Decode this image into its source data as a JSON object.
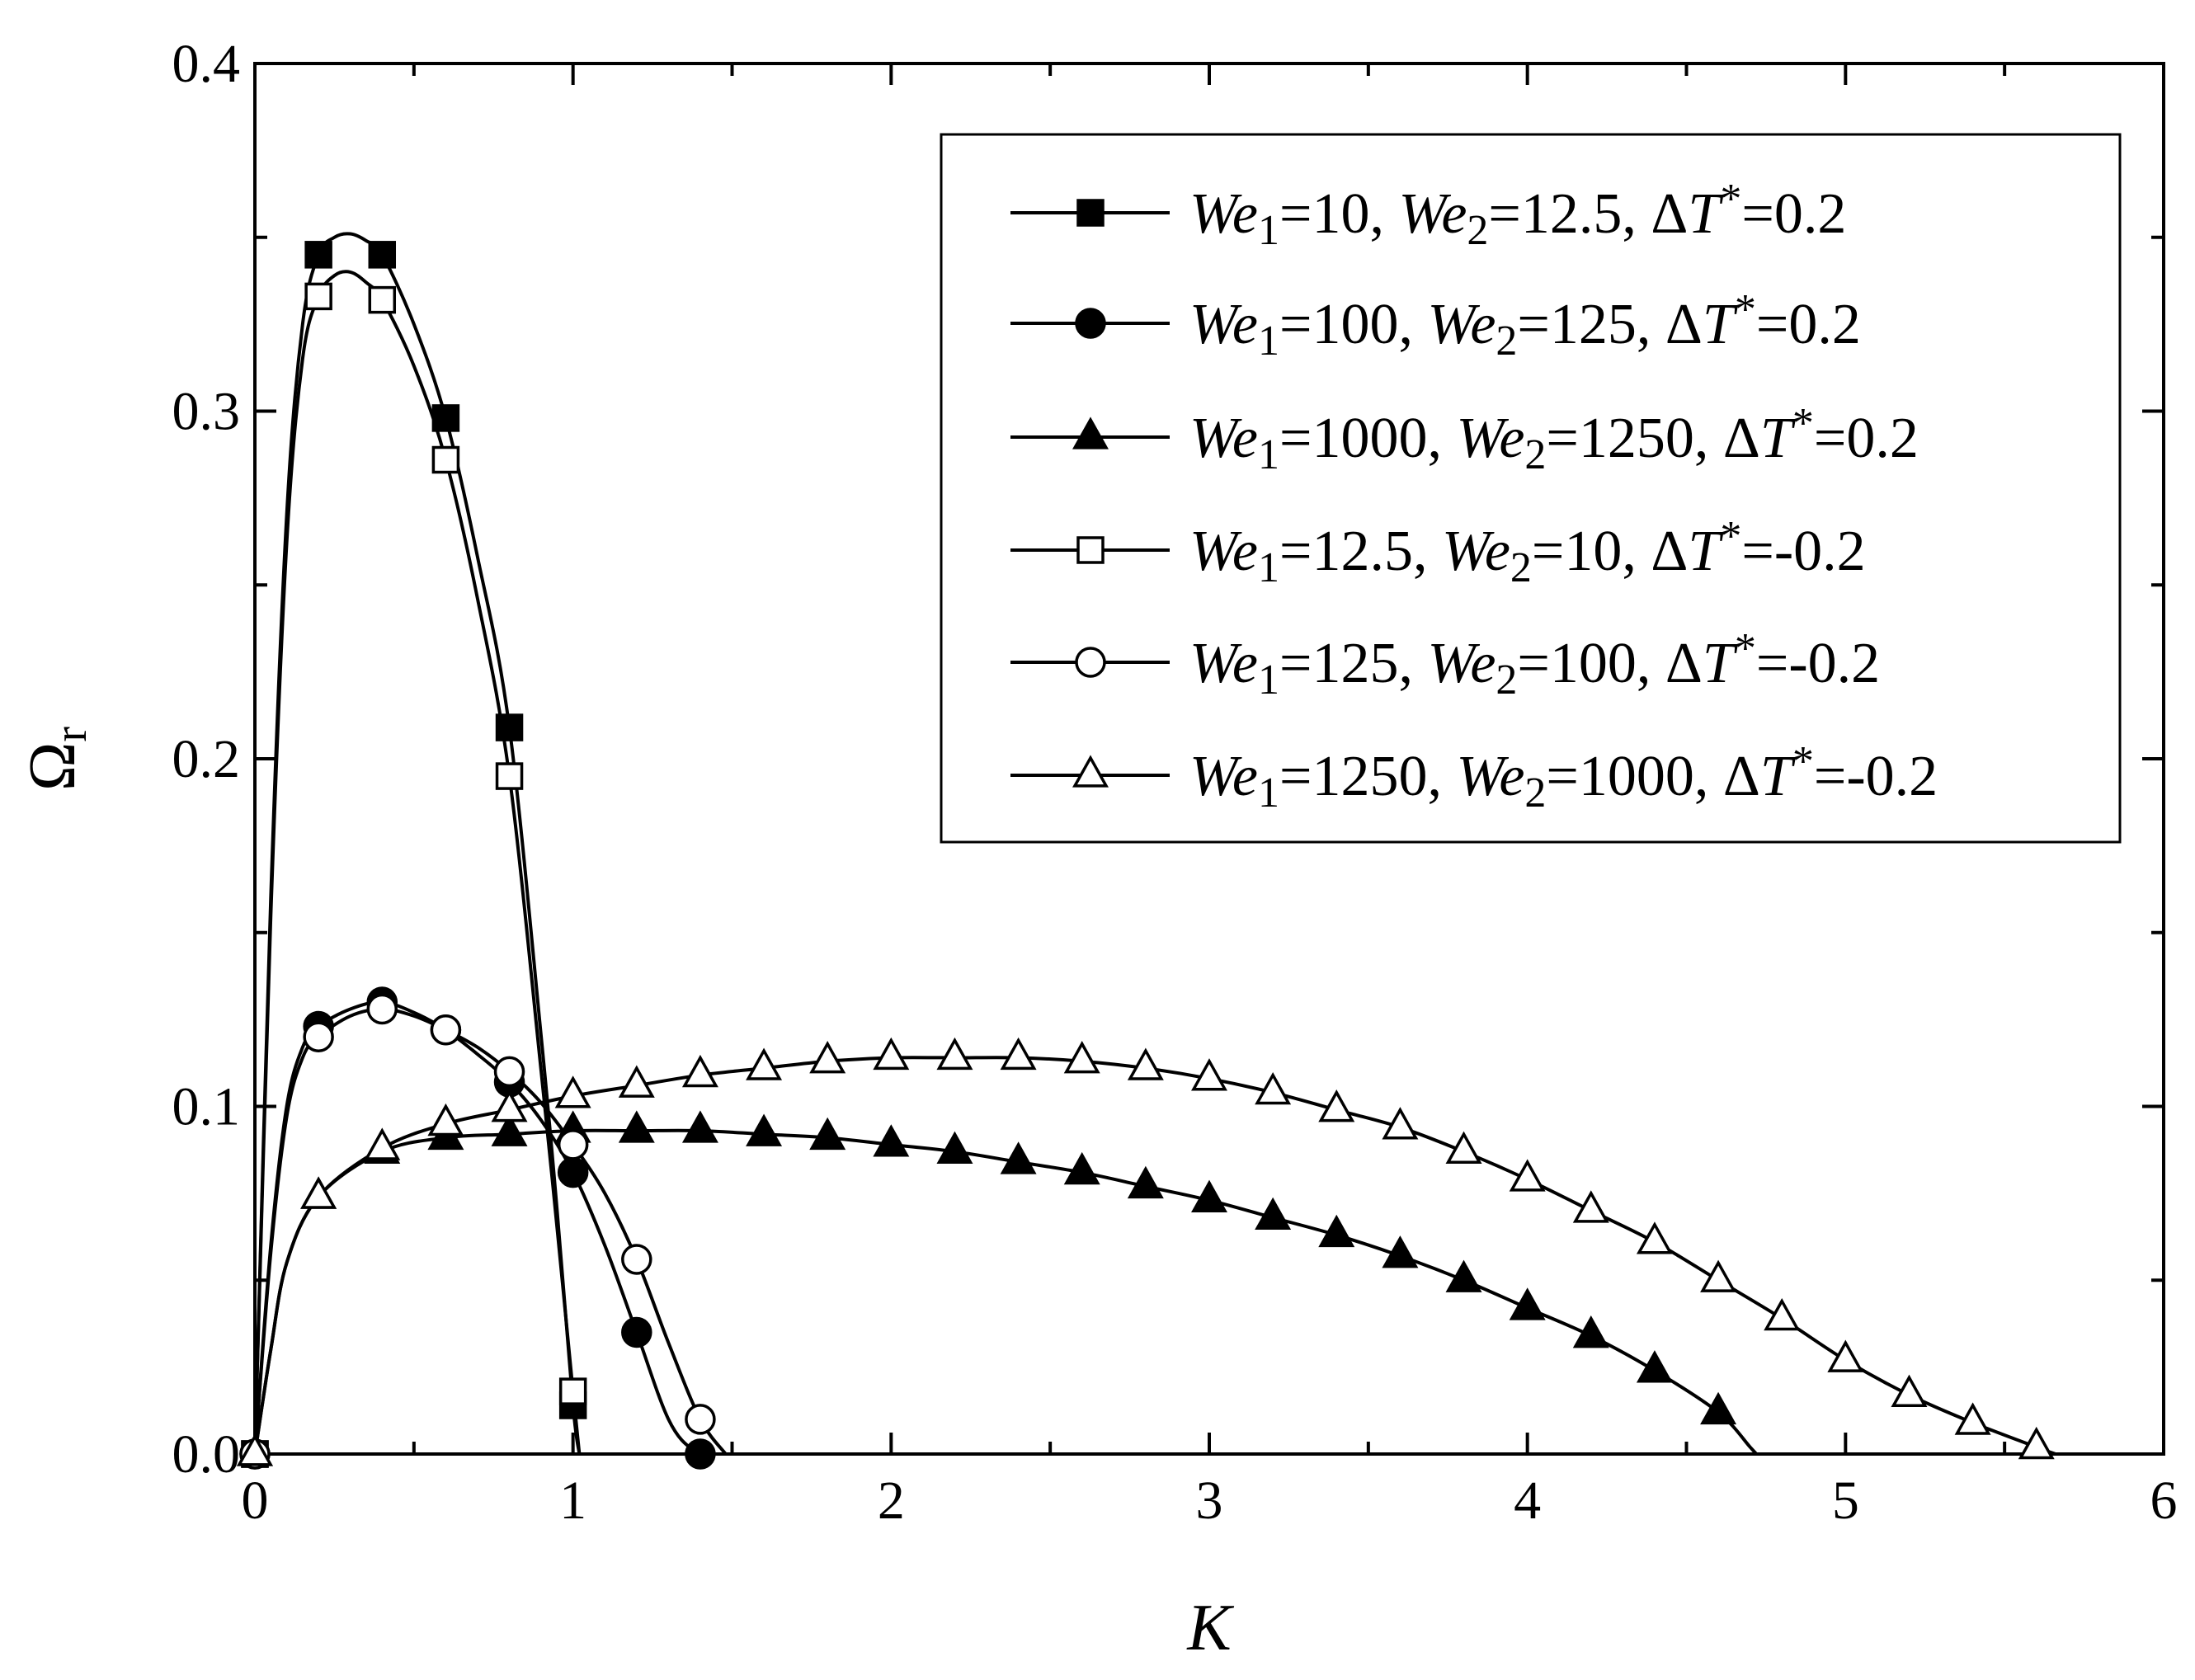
{
  "chart_data": {
    "type": "line",
    "xlabel": "K",
    "ylabel": "Ω",
    "ylabel_sub": "r",
    "xlim": [
      0,
      6
    ],
    "ylim": [
      0,
      0.4
    ],
    "xticks": [
      0,
      1,
      2,
      3,
      4,
      5,
      6
    ],
    "yticks": [
      0.0,
      0.1,
      0.2,
      0.3,
      0.4
    ],
    "xtick_labels": [
      "0",
      "1",
      "2",
      "3",
      "4",
      "5",
      "6"
    ],
    "ytick_labels": [
      "0.0",
      "0.1",
      "0.2",
      "0.3",
      "0.4"
    ],
    "legend_position": "top-right",
    "grid": false,
    "series": [
      {
        "name": "We1=10, We2=12.5, ΔT*=0.2",
        "label": {
          "we1": "10",
          "we2": "12.5",
          "dt": "0.2"
        },
        "marker": "square",
        "filled": true,
        "x": [
          0,
          0.2,
          0.4,
          0.6,
          0.8,
          1.0
        ],
        "y": [
          0,
          0.345,
          0.345,
          0.298,
          0.209,
          0.014
        ],
        "curve_x": [
          0,
          0.05,
          0.1,
          0.15,
          0.2,
          0.25,
          0.3,
          0.35,
          0.4,
          0.5,
          0.6,
          0.7,
          0.8,
          0.9,
          0.95,
          1.0,
          1.02
        ],
        "curve_y": [
          0,
          0.16,
          0.27,
          0.325,
          0.345,
          0.35,
          0.351,
          0.349,
          0.345,
          0.325,
          0.298,
          0.258,
          0.209,
          0.12,
          0.07,
          0.014,
          0
        ]
      },
      {
        "name": "We1=100, We2=125, ΔT*=0.2",
        "label": {
          "we1": "100",
          "we2": "125",
          "dt": "0.2"
        },
        "marker": "circle",
        "filled": true,
        "x": [
          0,
          0.2,
          0.4,
          0.6,
          0.8,
          1.0,
          1.2,
          1.4
        ],
        "y": [
          0,
          0.123,
          0.13,
          0.122,
          0.107,
          0.081,
          0.035,
          0
        ],
        "curve_x": [
          0,
          0.05,
          0.1,
          0.15,
          0.2,
          0.3,
          0.4,
          0.5,
          0.6,
          0.7,
          0.8,
          0.9,
          1.0,
          1.1,
          1.2,
          1.3,
          1.38,
          1.45
        ],
        "curve_y": [
          0,
          0.06,
          0.1,
          0.117,
          0.123,
          0.128,
          0.13,
          0.127,
          0.122,
          0.115,
          0.107,
          0.096,
          0.081,
          0.06,
          0.035,
          0.01,
          0.001,
          0
        ]
      },
      {
        "name": "We1=1000, We2=1250, ΔT*=0.2",
        "label": {
          "we1": "1000",
          "we2": "1250",
          "dt": "0.2"
        },
        "marker": "triangle",
        "filled": true,
        "x": [
          0,
          0.2,
          0.4,
          0.6,
          0.8,
          1.0,
          1.2,
          1.4,
          1.6,
          1.8,
          2.0,
          2.2,
          2.4,
          2.6,
          2.8,
          3.0,
          3.2,
          3.4,
          3.6,
          3.8,
          4.0,
          4.2,
          4.4,
          4.6
        ],
        "y": [
          0,
          0.074,
          0.087,
          0.091,
          0.092,
          0.093,
          0.093,
          0.093,
          0.092,
          0.091,
          0.089,
          0.087,
          0.084,
          0.081,
          0.077,
          0.073,
          0.068,
          0.063,
          0.057,
          0.05,
          0.042,
          0.034,
          0.024,
          0.012
        ],
        "curve_x": [
          0,
          0.05,
          0.1,
          0.2,
          0.4,
          0.6,
          0.8,
          1.0,
          1.2,
          1.4,
          1.6,
          1.8,
          2.0,
          2.2,
          2.4,
          2.6,
          2.8,
          3.0,
          3.2,
          3.4,
          3.6,
          3.8,
          4.0,
          4.2,
          4.4,
          4.6,
          4.7,
          4.72
        ],
        "curve_y": [
          0,
          0.03,
          0.055,
          0.074,
          0.087,
          0.091,
          0.092,
          0.093,
          0.093,
          0.093,
          0.092,
          0.091,
          0.089,
          0.087,
          0.084,
          0.081,
          0.077,
          0.073,
          0.068,
          0.063,
          0.057,
          0.05,
          0.042,
          0.034,
          0.024,
          0.012,
          0.002,
          0
        ]
      },
      {
        "name": "We1=12.5, We2=10, ΔT*=-0.2",
        "label": {
          "we1": "12.5",
          "we2": "10",
          "dt": "-0.2"
        },
        "marker": "square",
        "filled": false,
        "x": [
          0,
          0.2,
          0.4,
          0.6,
          0.8,
          1.0
        ],
        "y": [
          0,
          0.333,
          0.332,
          0.286,
          0.195,
          0.018
        ],
        "curve_x": [
          0,
          0.05,
          0.1,
          0.15,
          0.2,
          0.25,
          0.3,
          0.35,
          0.4,
          0.5,
          0.6,
          0.7,
          0.8,
          0.9,
          0.95,
          1.0,
          1.02
        ],
        "curve_y": [
          0,
          0.155,
          0.262,
          0.315,
          0.333,
          0.339,
          0.34,
          0.337,
          0.332,
          0.313,
          0.286,
          0.246,
          0.195,
          0.11,
          0.065,
          0.018,
          0
        ]
      },
      {
        "name": "We1=125, We2=100, ΔT*=-0.2",
        "label": {
          "we1": "125",
          "we2": "100",
          "dt": "-0.2"
        },
        "marker": "circle",
        "filled": false,
        "x": [
          0,
          0.2,
          0.4,
          0.6,
          0.8,
          1.0,
          1.2,
          1.4
        ],
        "y": [
          0,
          0.12,
          0.128,
          0.122,
          0.11,
          0.089,
          0.056,
          0.01
        ],
        "curve_x": [
          0,
          0.05,
          0.1,
          0.15,
          0.2,
          0.3,
          0.4,
          0.5,
          0.6,
          0.7,
          0.8,
          0.9,
          1.0,
          1.1,
          1.2,
          1.3,
          1.4,
          1.48
        ],
        "curve_y": [
          0,
          0.058,
          0.097,
          0.114,
          0.12,
          0.126,
          0.128,
          0.126,
          0.122,
          0.117,
          0.11,
          0.101,
          0.089,
          0.075,
          0.056,
          0.032,
          0.01,
          0
        ]
      },
      {
        "name": "We1=1250, We2=1000, ΔT*=-0.2",
        "label": {
          "we1": "1250",
          "we2": "1000",
          "dt": "-0.2"
        },
        "marker": "triangle",
        "filled": false,
        "x": [
          0,
          0.2,
          0.4,
          0.6,
          0.8,
          1.0,
          1.2,
          1.4,
          1.6,
          1.8,
          2.0,
          2.2,
          2.4,
          2.6,
          2.8,
          3.0,
          3.2,
          3.4,
          3.6,
          3.8,
          4.0,
          4.2,
          4.4,
          4.6,
          4.8,
          5.0,
          5.2,
          5.4,
          5.6
        ],
        "y": [
          0,
          0.074,
          0.088,
          0.095,
          0.099,
          0.103,
          0.106,
          0.109,
          0.111,
          0.113,
          0.114,
          0.114,
          0.114,
          0.113,
          0.111,
          0.108,
          0.104,
          0.099,
          0.094,
          0.087,
          0.079,
          0.07,
          0.061,
          0.05,
          0.039,
          0.027,
          0.017,
          0.009,
          0.002
        ],
        "curve_x": [
          0,
          0.05,
          0.1,
          0.2,
          0.4,
          0.6,
          0.8,
          1.0,
          1.2,
          1.4,
          1.6,
          1.8,
          2.0,
          2.2,
          2.4,
          2.6,
          2.8,
          3.0,
          3.2,
          3.4,
          3.6,
          3.8,
          4.0,
          4.2,
          4.4,
          4.6,
          4.8,
          5.0,
          5.2,
          5.4,
          5.6,
          5.66
        ],
        "curve_y": [
          0,
          0.03,
          0.055,
          0.074,
          0.088,
          0.095,
          0.099,
          0.103,
          0.106,
          0.109,
          0.111,
          0.113,
          0.114,
          0.114,
          0.114,
          0.113,
          0.111,
          0.108,
          0.104,
          0.099,
          0.094,
          0.087,
          0.079,
          0.07,
          0.061,
          0.05,
          0.039,
          0.027,
          0.017,
          0.009,
          0.002,
          0
        ]
      }
    ]
  }
}
